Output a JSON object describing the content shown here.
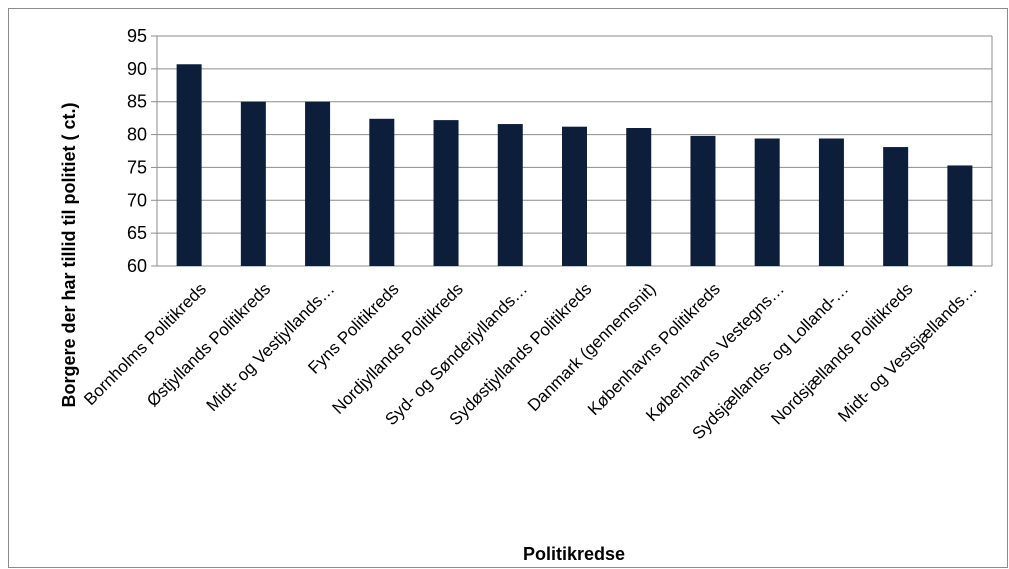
{
  "chart_data": {
    "type": "bar",
    "title": "",
    "xlabel": "Politikredse",
    "ylabel": "Borgere der har tillid til politiet ( ct.)",
    "ylim": [
      60,
      95
    ],
    "yticks": [
      60,
      65,
      70,
      75,
      80,
      85,
      90,
      95
    ],
    "grid": true,
    "legend": "none",
    "bar_color": "#0d1e3a",
    "categories": [
      "Bornholms Politikreds",
      "Østjyllands Politikreds",
      "Midt- og Vestjyllands…",
      "Fyns Politikreds",
      "Nordjyllands Politikreds",
      "Syd- og Sønderjyllands…",
      "Sydøstjyllands Politikreds",
      "Danmark (gennemsnit)",
      "Københavns Politikreds",
      "Københavns Vestegns…",
      "Sydsjællands- og Lolland-…",
      "Nordsjællands Politikreds",
      "Midt- og Vestsjællands…"
    ],
    "values": [
      90.7,
      85.0,
      85.0,
      82.4,
      82.2,
      81.6,
      81.2,
      81.0,
      79.8,
      79.4,
      79.4,
      78.1,
      75.3
    ]
  }
}
